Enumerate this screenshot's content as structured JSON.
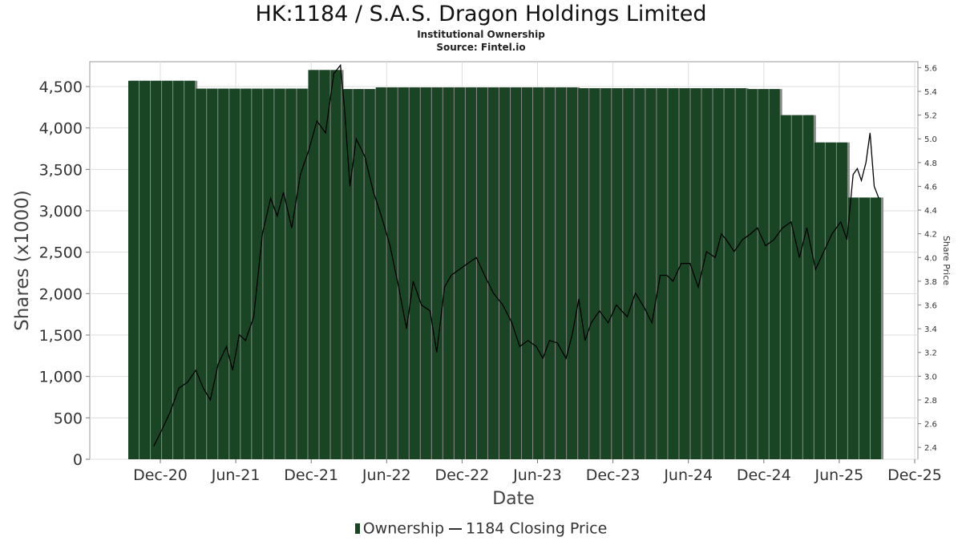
{
  "title": "HK:1184 / S.A.S. Dragon Holdings Limited",
  "subtitle": "Institutional Ownership",
  "source": "Source: Fintel.io",
  "colors": {
    "bar": "#1a4524",
    "bar_shadow": "#8a8a8a",
    "line": "#000000",
    "grid": "#dddddd"
  },
  "chart_data": {
    "type": "bar",
    "xlabel": "Date",
    "ylabel": "Shares (x1000)",
    "y2label": "Share Price",
    "ylim": [
      0,
      4800
    ],
    "y2lim": [
      2.3,
      5.65
    ],
    "yticks": [
      "0",
      "500",
      "1,000",
      "1,500",
      "2,000",
      "2,500",
      "3,000",
      "3,500",
      "4,000",
      "4,500"
    ],
    "y2ticks": [
      "2.4",
      "2.6",
      "2.8",
      "3.0",
      "3.2",
      "3.4",
      "3.6",
      "3.8",
      "4.0",
      "4.2",
      "4.4",
      "4.6",
      "4.8",
      "5.0",
      "5.2",
      "5.4",
      "5.6"
    ],
    "xticks": [
      "Dec-20",
      "Jun-21",
      "Dec-21",
      "Jun-22",
      "Dec-22",
      "Jun-23",
      "Dec-23",
      "Jun-24",
      "Dec-24",
      "Jun-25",
      "Dec-25"
    ],
    "grid": true,
    "legend_position": "bottom",
    "series": [
      {
        "name": "Ownership",
        "type": "bar",
        "values": [
          4570,
          4570,
          4570,
          4570,
          4570,
          4570,
          4475,
          4475,
          4475,
          4475,
          4475,
          4475,
          4475,
          4475,
          4475,
          4475,
          4700,
          4700,
          4700,
          4470,
          4470,
          4470,
          4490,
          4490,
          4490,
          4490,
          4490,
          4490,
          4490,
          4490,
          4490,
          4490,
          4490,
          4490,
          4490,
          4490,
          4490,
          4490,
          4490,
          4490,
          4480,
          4480,
          4480,
          4480,
          4480,
          4480,
          4480,
          4480,
          4480,
          4480,
          4480,
          4480,
          4480,
          4480,
          4480,
          4470,
          4470,
          4470,
          4155,
          4155,
          4155,
          3825,
          3825,
          3825,
          3160,
          3160,
          3160
        ]
      },
      {
        "name": "1184 Closing Price",
        "type": "line",
        "points": [
          [
            "2020-11-15",
            2.41
          ],
          [
            "2020-12-05",
            2.55
          ],
          [
            "2020-12-25",
            2.7
          ],
          [
            "2021-01-15",
            2.9
          ],
          [
            "2021-02-05",
            2.95
          ],
          [
            "2021-02-25",
            3.05
          ],
          [
            "2021-03-15",
            2.9
          ],
          [
            "2021-04-01",
            2.8
          ],
          [
            "2021-04-20",
            3.1
          ],
          [
            "2021-05-10",
            3.25
          ],
          [
            "2021-05-25",
            3.05
          ],
          [
            "2021-06-10",
            3.35
          ],
          [
            "2021-06-25",
            3.3
          ],
          [
            "2021-07-15",
            3.5
          ],
          [
            "2021-08-05",
            4.2
          ],
          [
            "2021-08-25",
            4.5
          ],
          [
            "2021-09-10",
            4.35
          ],
          [
            "2021-09-25",
            4.55
          ],
          [
            "2021-10-15",
            4.25
          ],
          [
            "2021-11-05",
            4.7
          ],
          [
            "2021-11-25",
            4.9
          ],
          [
            "2021-12-15",
            5.15
          ],
          [
            "2022-01-05",
            5.05
          ],
          [
            "2022-01-25",
            5.55
          ],
          [
            "2022-02-10",
            5.62
          ],
          [
            "2022-02-20",
            5.25
          ],
          [
            "2022-03-05",
            4.6
          ],
          [
            "2022-03-20",
            5.0
          ],
          [
            "2022-04-10",
            4.85
          ],
          [
            "2022-05-01",
            4.55
          ],
          [
            "2022-05-20",
            4.35
          ],
          [
            "2022-06-10",
            4.1
          ],
          [
            "2022-07-01",
            3.75
          ],
          [
            "2022-07-20",
            3.4
          ],
          [
            "2022-08-05",
            3.8
          ],
          [
            "2022-08-25",
            3.6
          ],
          [
            "2022-09-15",
            3.55
          ],
          [
            "2022-10-01",
            3.2
          ],
          [
            "2022-10-20",
            3.75
          ],
          [
            "2022-11-05",
            3.85
          ],
          [
            "2022-11-25",
            3.9
          ],
          [
            "2022-12-15",
            3.95
          ],
          [
            "2023-01-05",
            4.0
          ],
          [
            "2023-01-25",
            3.85
          ],
          [
            "2023-02-15",
            3.7
          ],
          [
            "2023-03-10",
            3.6
          ],
          [
            "2023-04-01",
            3.45
          ],
          [
            "2023-04-20",
            3.25
          ],
          [
            "2023-05-10",
            3.3
          ],
          [
            "2023-05-30",
            3.25
          ],
          [
            "2023-06-15",
            3.15
          ],
          [
            "2023-07-01",
            3.3
          ],
          [
            "2023-07-20",
            3.28
          ],
          [
            "2023-08-10",
            3.15
          ],
          [
            "2023-08-25",
            3.35
          ],
          [
            "2023-09-10",
            3.65
          ],
          [
            "2023-09-25",
            3.3
          ],
          [
            "2023-10-10",
            3.45
          ],
          [
            "2023-10-30",
            3.55
          ],
          [
            "2023-11-20",
            3.45
          ],
          [
            "2023-12-10",
            3.6
          ],
          [
            "2024-01-05",
            3.5
          ],
          [
            "2024-01-25",
            3.7
          ],
          [
            "2024-02-15",
            3.58
          ],
          [
            "2024-03-05",
            3.45
          ],
          [
            "2024-03-25",
            3.85
          ],
          [
            "2024-04-10",
            3.85
          ],
          [
            "2024-04-25",
            3.8
          ],
          [
            "2024-05-15",
            3.95
          ],
          [
            "2024-06-05",
            3.95
          ],
          [
            "2024-06-25",
            3.75
          ],
          [
            "2024-07-15",
            4.05
          ],
          [
            "2024-08-05",
            4.0
          ],
          [
            "2024-08-20",
            4.2
          ],
          [
            "2024-09-01",
            4.15
          ],
          [
            "2024-09-20",
            4.05
          ],
          [
            "2024-10-10",
            4.15
          ],
          [
            "2024-10-30",
            4.2
          ],
          [
            "2024-11-15",
            4.25
          ],
          [
            "2024-12-05",
            4.1
          ],
          [
            "2024-12-25",
            4.15
          ],
          [
            "2025-01-15",
            4.25
          ],
          [
            "2025-02-05",
            4.3
          ],
          [
            "2025-02-25",
            4.0
          ],
          [
            "2025-03-15",
            4.25
          ],
          [
            "2025-04-05",
            3.9
          ],
          [
            "2025-04-25",
            4.05
          ],
          [
            "2025-05-15",
            4.2
          ],
          [
            "2025-06-05",
            4.3
          ],
          [
            "2025-06-20",
            4.15
          ],
          [
            "2025-07-05",
            4.7
          ],
          [
            "2025-07-15",
            4.75
          ],
          [
            "2025-07-25",
            4.65
          ],
          [
            "2025-08-05",
            4.8
          ],
          [
            "2025-08-15",
            5.05
          ],
          [
            "2025-08-25",
            4.6
          ],
          [
            "2025-09-05",
            4.5
          ]
        ]
      }
    ]
  }
}
